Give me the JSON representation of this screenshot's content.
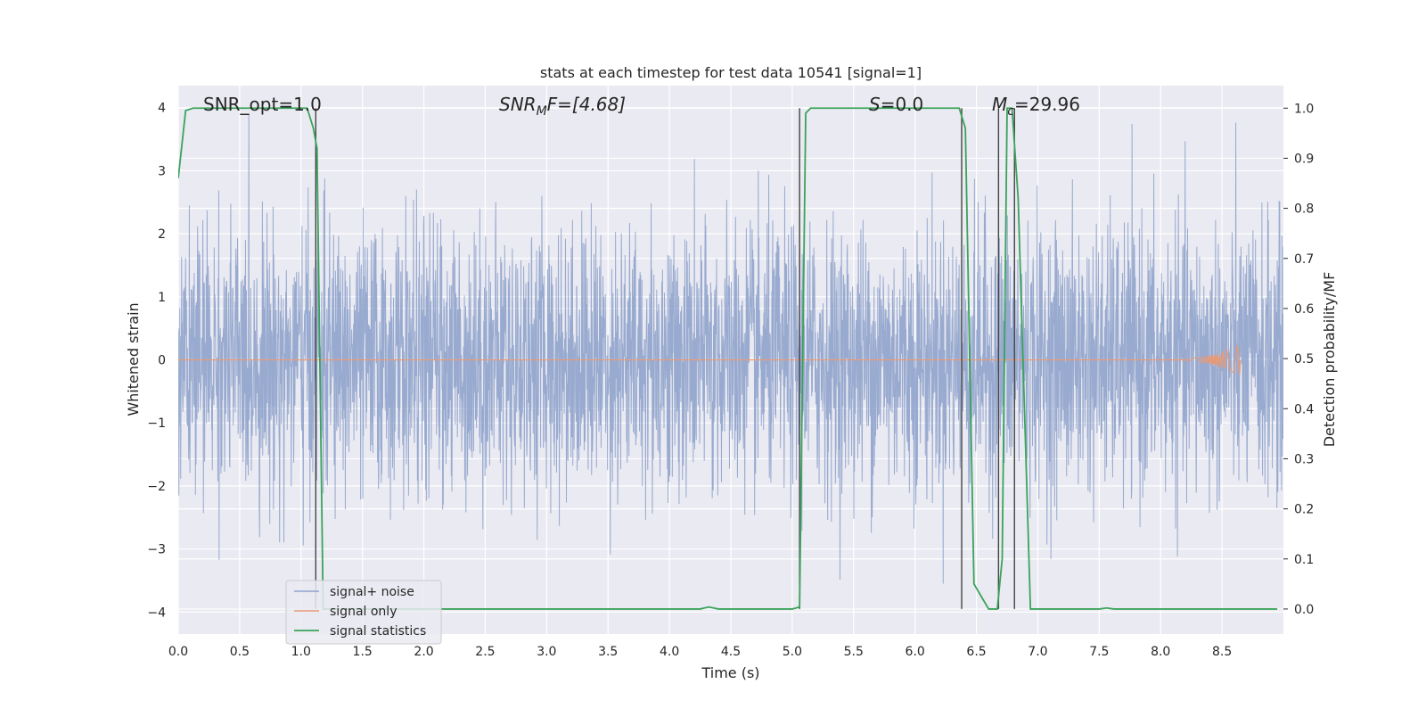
{
  "chart_data": {
    "type": "line",
    "title": "stats at each timestep for test data 10541 [signal=1]",
    "xlabel": "Time (s)",
    "ylabel": "Whitened strain",
    "ylabel_right": "Detection probability/MF",
    "xlim": [
      0,
      9
    ],
    "ylim": [
      -4.35,
      4.35
    ],
    "ylim_right": [
      -0.05,
      1.045
    ],
    "x_ticks": [
      "0.0",
      "0.5",
      "1.0",
      "1.5",
      "2.0",
      "2.5",
      "3.0",
      "3.5",
      "4.0",
      "4.5",
      "5.0",
      "5.5",
      "6.0",
      "6.5",
      "7.0",
      "7.5",
      "8.0",
      "8.5"
    ],
    "y_ticks": [
      "−4",
      "−3",
      "−2",
      "−1",
      "0",
      "1",
      "2",
      "3",
      "4"
    ],
    "y_ticks_right": [
      "0.0",
      "0.1",
      "0.2",
      "0.3",
      "0.4",
      "0.5",
      "0.6",
      "0.7",
      "0.8",
      "0.9",
      "1.0"
    ],
    "grid": true,
    "annotations": {
      "snr_opt": "SNR_opt=1.0",
      "snr_mf_main": "SNR",
      "snr_mf_sub": "M",
      "snr_mf_rest": "F=[4.68]",
      "s_main": "S",
      "s_rest": "=0.0",
      "mc_main": "M",
      "mc_sub": "c",
      "mc_rest": "=29.96"
    },
    "legend": {
      "position": "lower-left",
      "entries": [
        "signal+ noise",
        "signal only",
        "signal statistics"
      ]
    },
    "colors": {
      "noise": "#8fa3cb",
      "signal": "#e79a78",
      "statistics": "#3aa35a",
      "vlines": "#444444",
      "plot_bg": "#eaeaf2",
      "grid": "#ffffff"
    },
    "series": [
      {
        "name": "signal+ noise",
        "kind": "noise",
        "x_range": [
          0,
          9
        ],
        "approx_envelope": [
          -1.6,
          1.6
        ],
        "approx_peak_range": [
          -3.9,
          3.9
        ]
      },
      {
        "name": "signal only",
        "kind": "chirp",
        "x_range": [
          0,
          8.65
        ],
        "peak_time": 8.65,
        "peak_amplitude": 0.25
      },
      {
        "name": "signal statistics",
        "kind": "line",
        "x": [
          0.0,
          0.06,
          0.12,
          1.05,
          1.1,
          1.13,
          1.18,
          1.25,
          4.25,
          4.32,
          4.4,
          5.0,
          5.06,
          5.11,
          5.15,
          6.36,
          6.41,
          6.48,
          6.6,
          6.67,
          6.71,
          6.75,
          6.79,
          6.84,
          6.94,
          7.5,
          7.56,
          7.62,
          8.95
        ],
        "y": [
          0.86,
          0.995,
          1.0,
          1.0,
          0.96,
          0.92,
          0.0,
          0.0,
          0.0,
          0.004,
          0.0,
          0.0,
          0.004,
          0.99,
          1.0,
          1.0,
          0.96,
          0.05,
          0.0,
          0.0,
          0.1,
          1.0,
          1.0,
          0.82,
          0.0,
          0.0,
          0.002,
          0.0,
          0.0
        ]
      }
    ],
    "vertical_lines": [
      {
        "x": 1.12,
        "y_right": [
          0.0,
          1.0
        ]
      },
      {
        "x": 5.06,
        "y_right": [
          0.0,
          1.0
        ]
      },
      {
        "x": 6.38,
        "y_right": [
          0.0,
          1.0
        ]
      },
      {
        "x": 6.68,
        "y_right": [
          0.0,
          1.0
        ]
      },
      {
        "x": 6.81,
        "y_right": [
          0.0,
          1.0
        ]
      }
    ]
  }
}
